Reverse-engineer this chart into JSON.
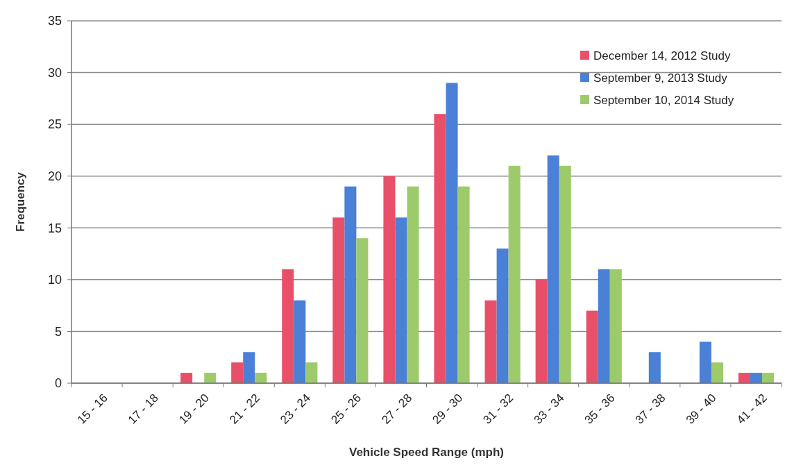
{
  "chart_data": {
    "type": "bar",
    "xlabel": "Vehicle Speed Range (mph)",
    "ylabel": "Frequency",
    "categories": [
      "15 - 16",
      "17 - 18",
      "19 - 20",
      "21 - 22",
      "23 - 24",
      "25 - 26",
      "27 - 28",
      "29 - 30",
      "31 - 32",
      "33 - 34",
      "35 - 36",
      "37 - 38",
      "39 - 40",
      "41 - 42"
    ],
    "series": [
      {
        "name": "December 14, 2012 Study",
        "color": "#e8506a",
        "values": [
          0,
          0,
          1,
          2,
          11,
          16,
          20,
          26,
          8,
          10,
          7,
          0,
          0,
          1
        ]
      },
      {
        "name": "September 9, 2013 Study",
        "color": "#4a80d6",
        "values": [
          0,
          0,
          0,
          3,
          8,
          19,
          16,
          29,
          13,
          22,
          11,
          3,
          4,
          1
        ]
      },
      {
        "name": "September 10, 2014 Study",
        "color": "#9dcb6b",
        "values": [
          0,
          0,
          1,
          1,
          2,
          14,
          19,
          19,
          21,
          21,
          11,
          0,
          2,
          1
        ]
      }
    ],
    "ylim": [
      0,
      35
    ],
    "yticks": [
      0,
      5,
      10,
      15,
      20,
      25,
      30,
      35
    ],
    "grid": "y",
    "legend": "top right"
  }
}
